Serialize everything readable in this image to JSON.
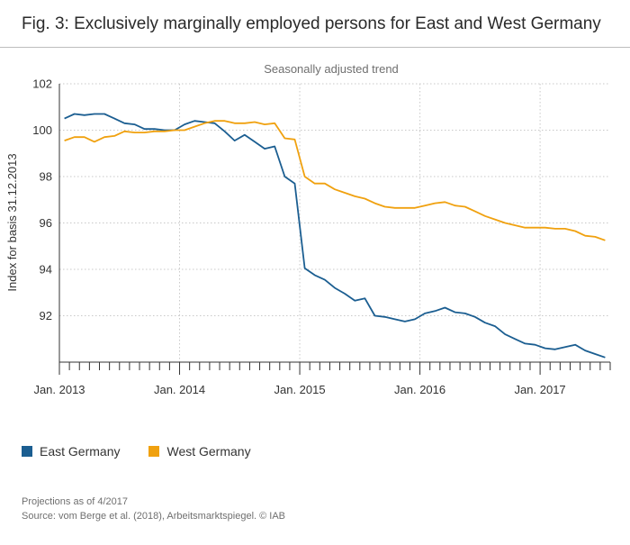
{
  "figure": {
    "title": "Fig. 3: Exclusively marginally employed persons for East and West Germany",
    "projection_note": "Projections as of 4/2017",
    "source_note": "Source: vom Berge et al. (2018), Arbeitsmarktspiegel. © IAB"
  },
  "colors": {
    "east": "#1b5e91",
    "west": "#f0a10f",
    "grid": "#c8c8c8",
    "axis": "#333333"
  },
  "chart_data": {
    "type": "line",
    "title": "Seasonally adjusted trend",
    "xlabel": "",
    "ylabel": "Index for basis 31.12.2013",
    "ylim": [
      90,
      102
    ],
    "yticks": [
      92,
      94,
      96,
      98,
      100,
      102
    ],
    "ytick_labels": [
      "92",
      "94",
      "96",
      "98",
      "100",
      "102"
    ],
    "x_start": "Jan. 2013",
    "months": 55,
    "xtick_labels": [
      {
        "month": 0,
        "label": "Jan. 2013"
      },
      {
        "month": 12,
        "label": "Jan. 2014"
      },
      {
        "month": 24,
        "label": "Jan. 2015"
      },
      {
        "month": 36,
        "label": "Jan. 2016"
      },
      {
        "month": 48,
        "label": "Jan. 2017"
      }
    ],
    "series": [
      {
        "name": "East Germany",
        "color": "#1b5e91",
        "values": [
          100.5,
          100.7,
          100.65,
          100.7,
          100.7,
          100.5,
          100.3,
          100.25,
          100.05,
          100.05,
          100.0,
          100.0,
          100.25,
          100.4,
          100.35,
          100.3,
          99.95,
          99.55,
          99.8,
          99.5,
          99.2,
          99.3,
          98.0,
          97.7,
          94.05,
          93.75,
          93.55,
          93.2,
          92.95,
          92.65,
          92.75,
          92.0,
          91.95,
          91.85,
          91.75,
          91.85,
          92.1,
          92.2,
          92.35,
          92.15,
          92.1,
          91.95,
          91.7,
          91.55,
          91.2,
          91.0,
          90.8,
          90.75,
          90.6,
          90.55,
          90.65,
          90.75,
          90.5,
          90.35,
          90.2
        ]
      },
      {
        "name": "West Germany",
        "color": "#f0a10f",
        "values": [
          99.55,
          99.7,
          99.7,
          99.5,
          99.7,
          99.75,
          99.95,
          99.9,
          99.9,
          99.95,
          99.95,
          100.0,
          100.0,
          100.15,
          100.3,
          100.4,
          100.4,
          100.3,
          100.3,
          100.35,
          100.25,
          100.3,
          99.65,
          99.6,
          98.0,
          97.7,
          97.7,
          97.45,
          97.3,
          97.15,
          97.05,
          96.85,
          96.7,
          96.65,
          96.65,
          96.65,
          96.75,
          96.85,
          96.9,
          96.75,
          96.7,
          96.5,
          96.3,
          96.15,
          96.0,
          95.9,
          95.8,
          95.8,
          95.8,
          95.75,
          95.75,
          95.65,
          95.45,
          95.4,
          95.25
        ]
      }
    ]
  }
}
